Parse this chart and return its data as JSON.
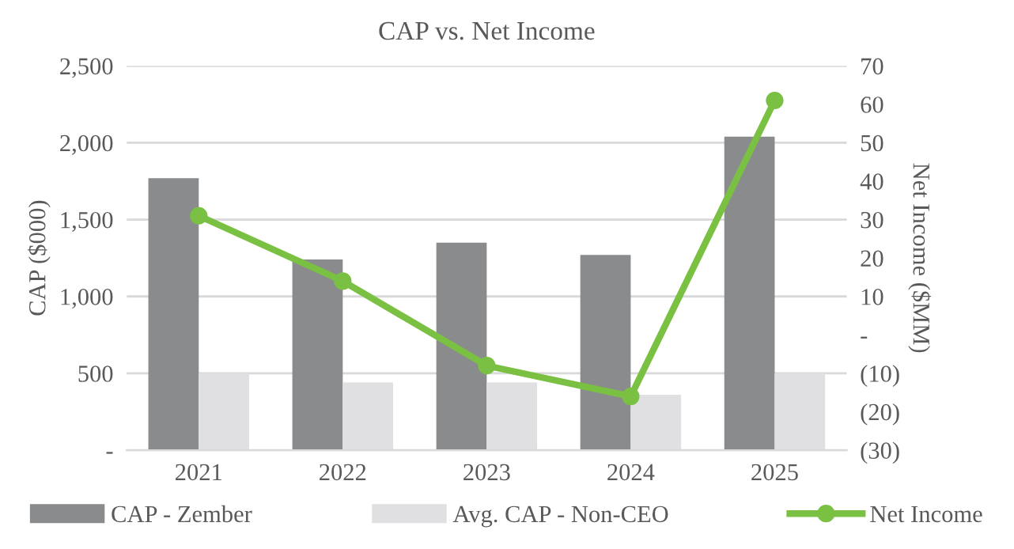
{
  "chart_data": {
    "type": "bar",
    "title": "CAP vs. Net Income",
    "ylabel": "CAP ($000)",
    "y2label": "Net Income ($MM)",
    "categories": [
      "2021",
      "2022",
      "2023",
      "2024",
      "2025"
    ],
    "series": [
      {
        "name": "CAP - Zember",
        "color": "#8a8b8d",
        "values": [
          1770,
          1240,
          1350,
          1270,
          2040
        ]
      },
      {
        "name": "Avg. CAP - Non-CEO",
        "color": "#e0e0e2",
        "values": [
          500,
          440,
          440,
          360,
          500
        ]
      },
      {
        "name": "Net Income",
        "type": "line",
        "axis": "y2",
        "color": "#7ac143",
        "marker": "circle",
        "values": [
          31,
          14,
          -8,
          -16,
          61
        ]
      }
    ],
    "ylim": [
      0,
      2500
    ],
    "yticks": [
      {
        "value": 0,
        "label": "-"
      },
      500,
      {
        "value": 1000,
        "label": "1,000"
      },
      {
        "value": 1500,
        "label": "1,500"
      },
      {
        "value": 2000,
        "label": "2,000"
      },
      {
        "value": 2500,
        "label": "2,500"
      }
    ],
    "y2lim": [
      -30,
      70
    ],
    "y2ticks": [
      {
        "value": -30,
        "label": "(30)"
      },
      {
        "value": -20,
        "label": "(20)"
      },
      {
        "value": -10,
        "label": "(10)"
      },
      {
        "value": 0,
        "label": "-"
      },
      10,
      20,
      30,
      40,
      50,
      60,
      70
    ],
    "grid": "y",
    "legend": "bottom"
  }
}
